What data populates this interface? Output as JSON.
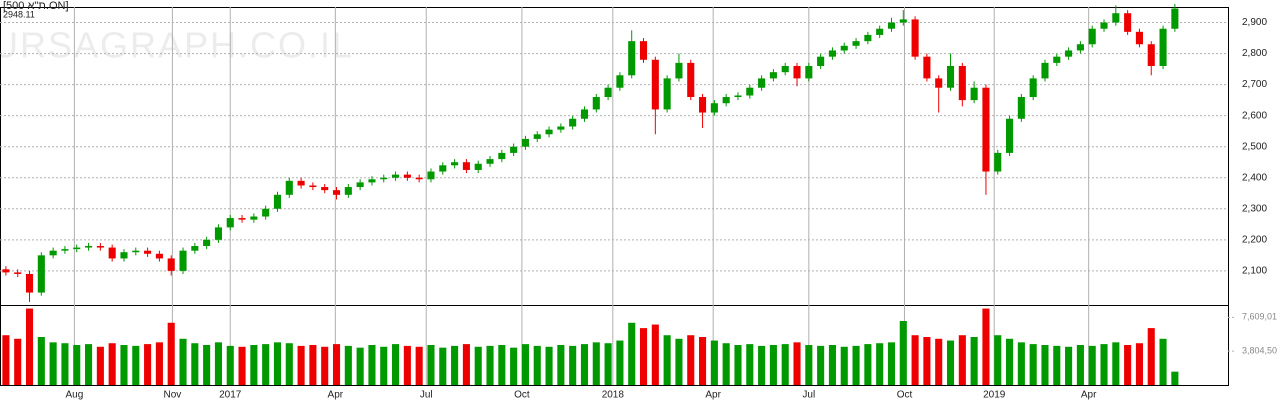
{
  "chart_data": {
    "type": "candlestick",
    "symbol": "[500 ת\"א.ON]",
    "last": "2948.11",
    "watermark": "BURSAGRAPH.CO.IL",
    "up_color": "#009900",
    "down_color": "#ee0000",
    "grid": true,
    "categories": [
      null,
      null,
      null,
      null,
      null,
      null,
      null,
      null,
      null,
      null,
      null,
      null,
      null,
      null,
      null,
      null,
      null,
      null,
      null,
      null,
      null,
      null,
      null,
      null,
      null,
      null,
      null,
      null,
      null,
      null,
      null,
      null,
      null,
      null,
      null,
      null,
      null,
      null,
      null,
      null,
      null,
      null,
      null,
      null,
      null,
      null,
      null,
      null,
      null,
      null,
      null,
      null,
      null,
      null,
      null,
      null,
      null,
      null,
      null,
      null,
      null,
      null,
      null,
      null,
      null,
      null,
      null,
      null,
      null,
      null,
      null,
      null,
      null,
      null,
      null,
      null,
      null,
      null,
      null,
      null,
      null,
      null,
      null,
      null,
      null,
      null,
      null,
      null,
      null,
      null,
      null,
      null,
      null,
      null,
      null,
      null,
      null,
      null,
      null,
      null
    ],
    "open": [
      2105,
      2095,
      2090,
      2030,
      2150,
      2165,
      2170,
      2175,
      2180,
      2175,
      2140,
      2160,
      2165,
      2155,
      2140,
      2100,
      2165,
      2180,
      2200,
      2240,
      2270,
      2265,
      2275,
      2300,
      2345,
      2390,
      2375,
      2370,
      2360,
      2345,
      2370,
      2385,
      2395,
      2400,
      2410,
      2400,
      2395,
      2420,
      2440,
      2450,
      2425,
      2445,
      2460,
      2480,
      2500,
      2525,
      2540,
      2555,
      2565,
      2590,
      2620,
      2660,
      2690,
      2730,
      2840,
      2780,
      2620,
      2720,
      2770,
      2660,
      2610,
      2640,
      2660,
      2665,
      2690,
      2720,
      2740,
      2760,
      2720,
      2760,
      2790,
      2810,
      2825,
      2840,
      2860,
      2880,
      2900,
      2910,
      2790,
      2720,
      2690,
      2760,
      2650,
      2690,
      2420,
      2480,
      2590,
      2660,
      2720,
      2770,
      2790,
      2810,
      2830,
      2880,
      2900,
      2930,
      2870,
      2830,
      2760,
      2880
    ],
    "high": [
      2115,
      2105,
      2100,
      2160,
      2175,
      2180,
      2185,
      2190,
      2190,
      2185,
      2170,
      2175,
      2175,
      2165,
      2150,
      2175,
      2190,
      2210,
      2250,
      2280,
      2280,
      2285,
      2310,
      2355,
      2400,
      2400,
      2385,
      2380,
      2370,
      2380,
      2395,
      2405,
      2410,
      2420,
      2420,
      2410,
      2430,
      2450,
      2460,
      2460,
      2455,
      2470,
      2490,
      2510,
      2535,
      2550,
      2565,
      2575,
      2600,
      2630,
      2670,
      2700,
      2740,
      2875,
      2850,
      2790,
      2730,
      2800,
      2780,
      2670,
      2650,
      2670,
      2675,
      2700,
      2730,
      2750,
      2770,
      2770,
      2770,
      2800,
      2820,
      2835,
      2850,
      2870,
      2890,
      2915,
      2940,
      2920,
      2800,
      2730,
      2800,
      2770,
      2710,
      2700,
      2490,
      2600,
      2670,
      2730,
      2780,
      2800,
      2820,
      2840,
      2890,
      2910,
      2955,
      2940,
      2880,
      2840,
      2890,
      2960
    ],
    "low": [
      2085,
      2080,
      2000,
      2020,
      2140,
      2155,
      2160,
      2165,
      2165,
      2130,
      2130,
      2150,
      2145,
      2130,
      2085,
      2090,
      2155,
      2170,
      2190,
      2230,
      2255,
      2255,
      2265,
      2290,
      2335,
      2365,
      2360,
      2350,
      2330,
      2335,
      2360,
      2375,
      2385,
      2390,
      2390,
      2385,
      2385,
      2410,
      2430,
      2415,
      2415,
      2435,
      2450,
      2470,
      2490,
      2515,
      2530,
      2545,
      2555,
      2580,
      2610,
      2650,
      2680,
      2720,
      2770,
      2540,
      2610,
      2710,
      2650,
      2560,
      2600,
      2630,
      2650,
      2655,
      2680,
      2710,
      2730,
      2695,
      2710,
      2750,
      2780,
      2800,
      2815,
      2830,
      2850,
      2870,
      2890,
      2780,
      2710,
      2610,
      2680,
      2630,
      2640,
      2345,
      2410,
      2470,
      2580,
      2650,
      2710,
      2760,
      2780,
      2800,
      2820,
      2870,
      2890,
      2860,
      2820,
      2730,
      2750,
      2870
    ],
    "close": [
      2095,
      2090,
      2030,
      2150,
      2165,
      2170,
      2175,
      2180,
      2175,
      2140,
      2160,
      2165,
      2155,
      2140,
      2100,
      2165,
      2180,
      2200,
      2240,
      2270,
      2265,
      2275,
      2300,
      2345,
      2390,
      2375,
      2370,
      2360,
      2345,
      2370,
      2385,
      2395,
      2400,
      2410,
      2400,
      2395,
      2420,
      2440,
      2450,
      2425,
      2445,
      2460,
      2480,
      2500,
      2525,
      2540,
      2555,
      2565,
      2590,
      2620,
      2660,
      2690,
      2730,
      2840,
      2780,
      2620,
      2720,
      2770,
      2660,
      2610,
      2640,
      2660,
      2665,
      2690,
      2720,
      2740,
      2760,
      2720,
      2760,
      2790,
      2810,
      2825,
      2840,
      2860,
      2880,
      2900,
      2910,
      2790,
      2720,
      2690,
      2760,
      2650,
      2690,
      2420,
      2480,
      2590,
      2660,
      2720,
      2770,
      2790,
      2810,
      2830,
      2880,
      2900,
      2930,
      2870,
      2830,
      2760,
      2880,
      2945
    ],
    "volume": [
      560000,
      520000,
      860000,
      540000,
      480000,
      470000,
      450000,
      460000,
      430000,
      470000,
      450000,
      440000,
      460000,
      480000,
      700000,
      520000,
      470000,
      450000,
      480000,
      440000,
      430000,
      450000,
      460000,
      480000,
      470000,
      440000,
      450000,
      430000,
      460000,
      440000,
      420000,
      450000,
      430000,
      460000,
      440000,
      430000,
      450000,
      420000,
      440000,
      460000,
      430000,
      440000,
      450000,
      420000,
      460000,
      440000,
      430000,
      450000,
      440000,
      460000,
      480000,
      470000,
      500000,
      700000,
      640000,
      680000,
      560000,
      520000,
      560000,
      540000,
      500000,
      470000,
      450000,
      460000,
      440000,
      450000,
      460000,
      480000,
      450000,
      440000,
      450000,
      430000,
      440000,
      460000,
      470000,
      480000,
      720000,
      560000,
      540000,
      520000,
      500000,
      560000,
      540000,
      860000,
      560000,
      520000,
      480000,
      460000,
      450000,
      440000,
      430000,
      450000,
      440000,
      460000,
      480000,
      450000,
      470000,
      640000,
      520000,
      150000
    ],
    "xlim": [
      -0.5,
      103.5
    ],
    "xticks": [
      {
        "value": 5.8,
        "label": "Aug"
      },
      {
        "value": 14.1,
        "label": "Nov"
      },
      {
        "value": 19,
        "label": "2017"
      },
      {
        "value": 27.9,
        "label": "Apr"
      },
      {
        "value": 35.6,
        "label": "Jul"
      },
      {
        "value": 43.7,
        "label": "Oct"
      },
      {
        "value": 51.4,
        "label": "2018"
      },
      {
        "value": 59.9,
        "label": "Apr"
      },
      {
        "value": 68,
        "label": "Jul"
      },
      {
        "value": 76.1,
        "label": "Oct"
      },
      {
        "value": 83.7,
        "label": "2019"
      },
      {
        "value": 91.7,
        "label": "Apr"
      }
    ],
    "ylim": [
      1990,
      2950
    ],
    "yticks": [
      {
        "value": 2100,
        "label": "2,100"
      },
      {
        "value": 2200,
        "label": "2,200"
      },
      {
        "value": 2300,
        "label": "2,300"
      },
      {
        "value": 2400,
        "label": "2,400"
      },
      {
        "value": 2500,
        "label": "2,500"
      },
      {
        "value": 2600,
        "label": "2,600"
      },
      {
        "value": 2700,
        "label": "2,700"
      },
      {
        "value": 2800,
        "label": "2,800"
      },
      {
        "value": 2900,
        "label": "2,900"
      }
    ],
    "volume_ylim": [
      0,
      900000
    ],
    "volume_yticks": [
      {
        "value": 760901,
        "label": "7,609,01"
      },
      {
        "value": 380450,
        "label": "3,804,50"
      }
    ]
  }
}
